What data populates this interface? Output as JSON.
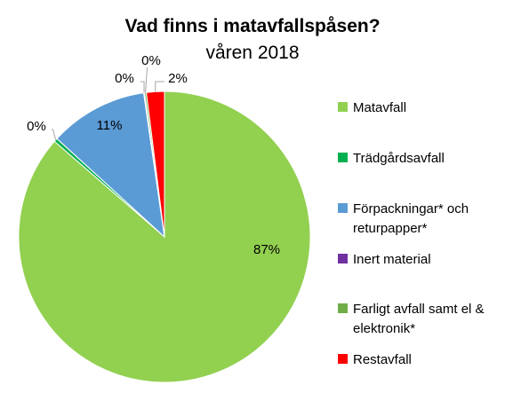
{
  "chart_data": {
    "type": "pie",
    "title": "Vad finns i matavfallspåsen?",
    "subtitle": "våren 2018",
    "slices": [
      {
        "name": "Matavfall",
        "value": 87,
        "label": "87%",
        "color": "#92d050"
      },
      {
        "name": "Trädgårdsavfall",
        "value": 0.4,
        "label": "0%",
        "color": "#00b050"
      },
      {
        "name": "Förpackningar* och returpapper*",
        "value": 11,
        "label": "11%",
        "color": "#5b9bd5"
      },
      {
        "name": "Inert material",
        "value": 0.1,
        "label": "0%",
        "color": "#7030a0"
      },
      {
        "name": "Farligt avfall samt el & elektronik*",
        "value": 0.2,
        "label": "0%",
        "color": "#70ad47"
      },
      {
        "name": "Restavfall",
        "value": 2,
        "label": "2%",
        "color": "#ff0000"
      }
    ],
    "legend_position": "right"
  }
}
